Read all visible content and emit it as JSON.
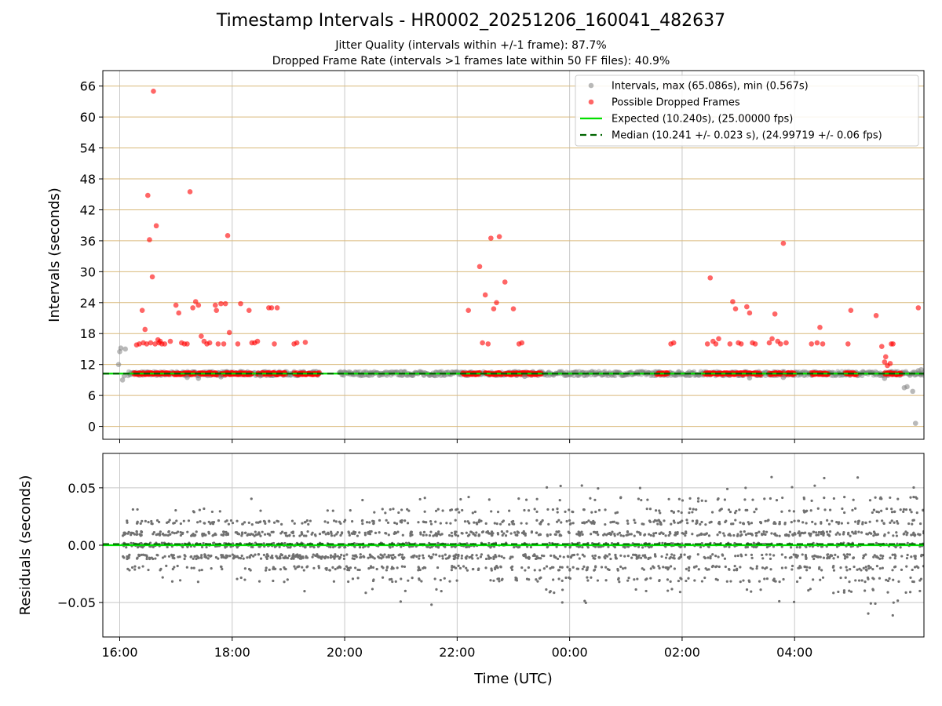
{
  "chart_data": [
    {
      "type": "scatter",
      "title": "Timestamp Intervals - HR0002_20251206_160041_482637",
      "subtitle_lines": [
        "Jitter Quality (intervals within +/-1 frame): 87.7%",
        "Dropped Frame Rate (intervals >1 frames late within 50 FF files): 40.9%"
      ],
      "xlabel": "",
      "ylabel": "Intervals (seconds)",
      "x_axis": {
        "unit": "hours since 16:00 UTC",
        "range": [
          -0.3,
          14.3
        ],
        "ticks": [
          0,
          2,
          4,
          6,
          8,
          10,
          12
        ],
        "tick_labels": [
          "16:00",
          "18:00",
          "20:00",
          "22:00",
          "00:00",
          "02:00",
          "04:00"
        ]
      },
      "y_axis": {
        "range": [
          -2.5,
          69
        ],
        "ticks": [
          0,
          6,
          12,
          18,
          24,
          30,
          36,
          42,
          48,
          54,
          60,
          66
        ],
        "tick_labels": [
          "0",
          "6",
          "12",
          "18",
          "24",
          "30",
          "36",
          "42",
          "48",
          "54",
          "60",
          "66"
        ]
      },
      "grid": true,
      "legend_position": "top-right",
      "legend": [
        "Intervals, max (65.086s), min (0.567s)",
        "Possible Dropped Frames",
        "Expected (10.240s), (25.00000 fps)",
        "Median (10.241 +/- 0.023 s), (24.99719 +/- 0.06 fps)"
      ],
      "colors": {
        "intervals": "#808080",
        "dropped": "#ff0000",
        "expected": "#00e000",
        "median": "#006400",
        "hgrid": "#d9b97a",
        "vgrid": "#c8c8c8"
      },
      "expected_interval": 10.24,
      "median_interval": 10.241,
      "baseline_segments": [
        [
          0.15,
          3.55
        ],
        [
          3.9,
          14.3
        ]
      ],
      "series": [
        {
          "name": "Intervals, max (65.086s), min (0.567s)",
          "x": [
            -0.02,
            0.0,
            0.02,
            0.05,
            0.08,
            0.1,
            1.2,
            1.4,
            1.8,
            2.5,
            7.2,
            11.2,
            11.8,
            13.6,
            13.95,
            14.0,
            14.1,
            14.15,
            14.2,
            14.25
          ],
          "y": [
            12.0,
            14.5,
            15.2,
            9.0,
            9.8,
            15.0,
            9.5,
            9.3,
            9.6,
            9.8,
            9.7,
            9.4,
            9.5,
            9.3,
            7.5,
            7.7,
            6.8,
            0.6,
            10.8,
            11.0
          ]
        },
        {
          "name": "Possible Dropped Frames",
          "x": [
            0.3,
            0.35,
            0.4,
            0.42,
            0.45,
            0.48,
            0.5,
            0.53,
            0.55,
            0.58,
            0.6,
            0.63,
            0.65,
            0.68,
            0.7,
            0.72,
            0.75,
            0.8,
            0.9,
            1.0,
            1.05,
            1.1,
            1.15,
            1.2,
            1.25,
            1.3,
            1.35,
            1.4,
            1.45,
            1.5,
            1.55,
            1.6,
            1.7,
            1.72,
            1.75,
            1.8,
            1.85,
            1.88,
            1.92,
            1.95,
            2.1,
            2.15,
            2.3,
            2.35,
            2.4,
            2.45,
            2.65,
            2.7,
            2.75,
            2.8,
            3.1,
            3.15,
            3.3,
            6.2,
            6.4,
            6.45,
            6.5,
            6.55,
            6.6,
            6.65,
            6.7,
            6.75,
            6.85,
            7.0,
            7.1,
            7.15,
            9.8,
            9.85,
            10.45,
            10.5,
            10.55,
            10.6,
            10.65,
            10.85,
            10.9,
            10.95,
            11.0,
            11.05,
            11.15,
            11.2,
            11.25,
            11.3,
            11.55,
            11.6,
            11.65,
            11.7,
            11.75,
            11.8,
            11.85,
            12.3,
            12.4,
            12.45,
            12.5,
            12.95,
            13.0,
            13.45,
            13.55,
            13.6,
            13.62,
            13.65,
            13.7,
            13.72,
            13.75,
            14.2
          ],
          "y": [
            15.8,
            16.0,
            22.5,
            16.2,
            18.8,
            16.0,
            44.8,
            36.2,
            16.2,
            29.0,
            65.0,
            16.0,
            38.9,
            16.8,
            16.2,
            16.5,
            16.0,
            16.0,
            16.5,
            23.5,
            22.0,
            16.2,
            16.0,
            16.0,
            45.5,
            23.0,
            24.2,
            23.5,
            17.5,
            16.5,
            16.0,
            16.2,
            23.5,
            22.5,
            16.0,
            23.8,
            16.0,
            23.8,
            37.0,
            18.2,
            16.0,
            23.8,
            22.5,
            16.2,
            16.2,
            16.5,
            23.0,
            23.0,
            16.0,
            23.0,
            16.0,
            16.2,
            16.3,
            22.5,
            31.0,
            16.2,
            25.5,
            16.0,
            36.5,
            22.8,
            24.0,
            36.8,
            28.0,
            22.8,
            16.0,
            16.2,
            16.0,
            16.2,
            16.0,
            28.8,
            16.5,
            16.0,
            17.0,
            16.0,
            24.2,
            22.8,
            16.2,
            16.0,
            23.2,
            22.0,
            16.2,
            16.0,
            16.2,
            17.0,
            21.8,
            16.5,
            16.0,
            35.5,
            16.2,
            16.0,
            16.2,
            19.2,
            16.0,
            16.0,
            22.5,
            21.5,
            15.5,
            12.5,
            13.5,
            11.8,
            12.2,
            16.0,
            16.0,
            23.0
          ]
        }
      ]
    },
    {
      "type": "scatter",
      "title": "",
      "xlabel": "Time (UTC)",
      "ylabel": "Residuals (seconds)",
      "x_axis": {
        "unit": "hours since 16:00 UTC",
        "range": [
          -0.3,
          14.3
        ],
        "ticks": [
          0,
          2,
          4,
          6,
          8,
          10,
          12
        ],
        "tick_labels": [
          "16:00",
          "18:00",
          "20:00",
          "22:00",
          "00:00",
          "02:00",
          "04:00"
        ]
      },
      "y_axis": {
        "range": [
          -0.08,
          0.08
        ],
        "ticks": [
          0.05,
          0.0,
          -0.05
        ],
        "tick_labels": [
          "0.05",
          "0.00",
          "−0.05"
        ]
      },
      "grid": true,
      "zero_line": 0.0,
      "median_offset": 0.001,
      "series": [
        {
          "name": "Residuals",
          "x_range": [
            0.05,
            14.3
          ],
          "y_spread_start": 0.025,
          "y_spread_end": 0.05,
          "count": 2400,
          "color": "#707070"
        }
      ]
    }
  ]
}
